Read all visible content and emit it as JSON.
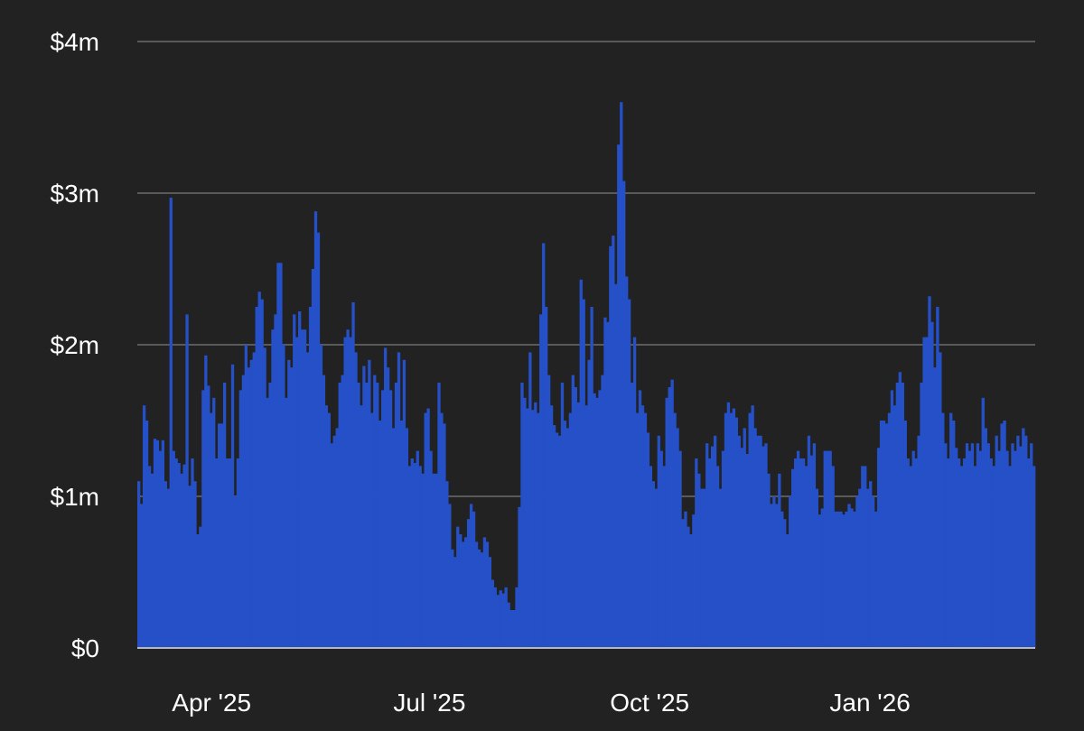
{
  "chart_data": {
    "type": "bar",
    "title": "",
    "xlabel": "",
    "ylabel": "",
    "y_unit": "USD",
    "ylim": [
      0,
      4000000
    ],
    "y_ticks": [
      {
        "value": 0,
        "label": "$0"
      },
      {
        "value": 1000000,
        "label": "$1m"
      },
      {
        "value": 2000000,
        "label": "$2m"
      },
      {
        "value": 3000000,
        "label": "$3m"
      },
      {
        "value": 4000000,
        "label": "$4m"
      }
    ],
    "x_ticks": [
      {
        "date": "2025-04-01",
        "label": "Apr '25"
      },
      {
        "date": "2025-07-01",
        "label": "Jul '25"
      },
      {
        "date": "2025-10-01",
        "label": "Oct '25"
      },
      {
        "date": "2026-01-01",
        "label": "Jan '26"
      }
    ],
    "x_start_date": "2025-03-01",
    "x_end_date": "2026-03-11",
    "grid": true,
    "legend": "none",
    "bar_color": "#2550c8",
    "series": [
      {
        "name": "",
        "values": [
          1.1,
          0.95,
          1.6,
          1.5,
          1.2,
          1.15,
          1.38,
          1.37,
          1.3,
          1.37,
          1.1,
          1.05,
          2.97,
          1.3,
          1.25,
          1.22,
          1.15,
          1.21,
          2.2,
          1.07,
          1.25,
          1.1,
          0.75,
          0.8,
          1.7,
          1.93,
          1.73,
          1.55,
          1.65,
          1.25,
          1.48,
          1.48,
          1.75,
          1.25,
          1.25,
          1.87,
          1.0,
          1.25,
          1.7,
          1.8,
          2.0,
          1.85,
          1.9,
          1.95,
          2.25,
          2.35,
          2.3,
          1.98,
          1.65,
          1.75,
          2.1,
          2.2,
          2.54,
          2.54,
          2.0,
          1.65,
          1.9,
          1.85,
          2.2,
          2.05,
          2.22,
          2.1,
          2.1,
          1.95,
          2.25,
          2.5,
          2.88,
          2.74,
          2.0,
          1.8,
          1.6,
          1.55,
          1.35,
          1.4,
          1.45,
          1.75,
          1.8,
          2.05,
          2.1,
          2.05,
          2.28,
          1.95,
          1.75,
          1.6,
          1.86,
          1.75,
          1.9,
          1.55,
          1.8,
          1.75,
          1.5,
          1.7,
          1.98,
          1.85,
          1.7,
          1.45,
          1.75,
          1.95,
          1.5,
          1.9,
          1.45,
          1.2,
          1.25,
          1.22,
          1.3,
          1.2,
          1.15,
          1.55,
          1.58,
          1.3,
          1.15,
          1.15,
          1.75,
          1.55,
          1.48,
          1.1,
          0.95,
          0.65,
          0.6,
          0.8,
          0.75,
          0.7,
          0.73,
          0.85,
          0.95,
          0.9,
          0.7,
          0.65,
          0.63,
          0.73,
          0.7,
          0.6,
          0.45,
          0.4,
          0.35,
          0.38,
          0.36,
          0.4,
          0.3,
          0.25,
          0.25,
          0.4,
          0.93,
          1.75,
          1.65,
          1.58,
          1.95,
          1.57,
          1.62,
          1.55,
          2.2,
          2.67,
          2.25,
          1.8,
          1.6,
          1.47,
          1.42,
          1.4,
          1.75,
          1.5,
          1.45,
          1.55,
          1.8,
          1.72,
          1.62,
          2.43,
          2.3,
          1.6,
          1.9,
          2.25,
          1.68,
          1.65,
          1.7,
          1.8,
          2.18,
          2.15,
          2.65,
          2.72,
          2.4,
          3.32,
          3.6,
          3.08,
          2.45,
          2.3,
          1.75,
          2.05,
          1.55,
          1.7,
          1.6,
          1.55,
          1.42,
          1.2,
          1.1,
          1.05,
          1.4,
          1.3,
          1.2,
          1.65,
          1.72,
          1.77,
          1.55,
          1.45,
          1.3,
          0.85,
          0.9,
          0.8,
          0.75,
          0.88,
          1.25,
          1.15,
          1.05,
          1.05,
          1.35,
          1.25,
          1.33,
          1.4,
          1.2,
          1.05,
          1.3,
          1.55,
          1.62,
          1.55,
          1.58,
          1.52,
          1.4,
          1.32,
          1.45,
          1.28,
          1.55,
          1.6,
          1.45,
          1.4,
          1.4,
          1.33,
          1.35,
          1.15,
          0.95,
          1.0,
          0.95,
          1.15,
          0.9,
          0.85,
          0.75,
          1.0,
          1.18,
          1.25,
          1.3,
          1.25,
          1.25,
          1.2,
          1.4,
          1.27,
          1.35,
          1.05,
          0.88,
          0.92,
          1.3,
          1.3,
          1.3,
          1.2,
          0.9,
          0.9,
          0.9,
          0.88,
          0.9,
          0.95,
          0.92,
          0.9,
          1.0,
          1.05,
          1.2,
          1.2,
          1.05,
          1.1,
          1.0,
          0.9,
          1.32,
          1.5,
          1.5,
          1.48,
          1.55,
          1.7,
          1.6,
          1.75,
          1.82,
          1.75,
          1.5,
          1.25,
          1.2,
          1.3,
          1.25,
          1.4,
          1.75,
          2.05,
          2.05,
          2.32,
          2.15,
          1.85,
          2.25,
          1.95,
          1.55,
          1.35,
          1.25,
          1.55,
          1.5,
          1.32,
          1.25,
          1.2,
          1.25,
          1.35,
          1.3,
          1.35,
          1.2,
          1.35,
          1.3,
          1.65,
          1.45,
          1.35,
          1.25,
          1.2,
          1.4,
          1.3,
          1.48,
          1.5,
          1.3,
          1.2,
          1.35,
          1.3,
          1.4,
          1.33,
          1.45,
          1.4,
          1.25,
          1.35,
          1.2
        ]
      }
    ]
  }
}
